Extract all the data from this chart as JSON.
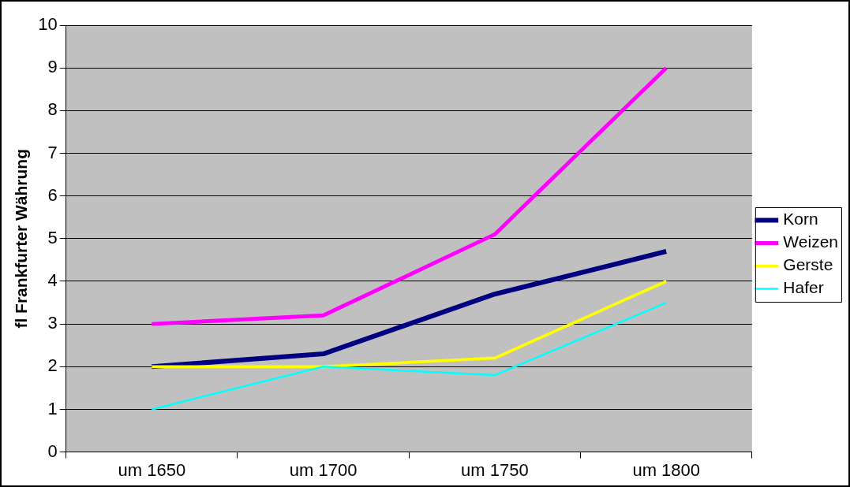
{
  "chart_data": {
    "type": "line",
    "ylabel": "fl Frankfurter Währung",
    "categories": [
      "um 1650",
      "um 1700",
      "um 1750",
      "um 1800"
    ],
    "series": [
      {
        "name": "Korn",
        "color": "#000080",
        "values": [
          2,
          2.3,
          3.7,
          4.7
        ]
      },
      {
        "name": "Weizen",
        "color": "#ff00ff",
        "values": [
          3,
          3.2,
          5.1,
          9
        ]
      },
      {
        "name": "Gerste",
        "color": "#ffff00",
        "values": [
          2,
          2,
          2.2,
          4
        ]
      },
      {
        "name": "Hafer",
        "color": "#00ffff",
        "values": [
          1,
          2,
          1.8,
          3.5
        ]
      }
    ],
    "ylim": [
      0,
      10
    ],
    "yticks": [
      0,
      1,
      2,
      3,
      4,
      5,
      6,
      7,
      8,
      9,
      10
    ],
    "grid": "y",
    "legend": "right",
    "marker": "none",
    "line_style": "solid"
  }
}
